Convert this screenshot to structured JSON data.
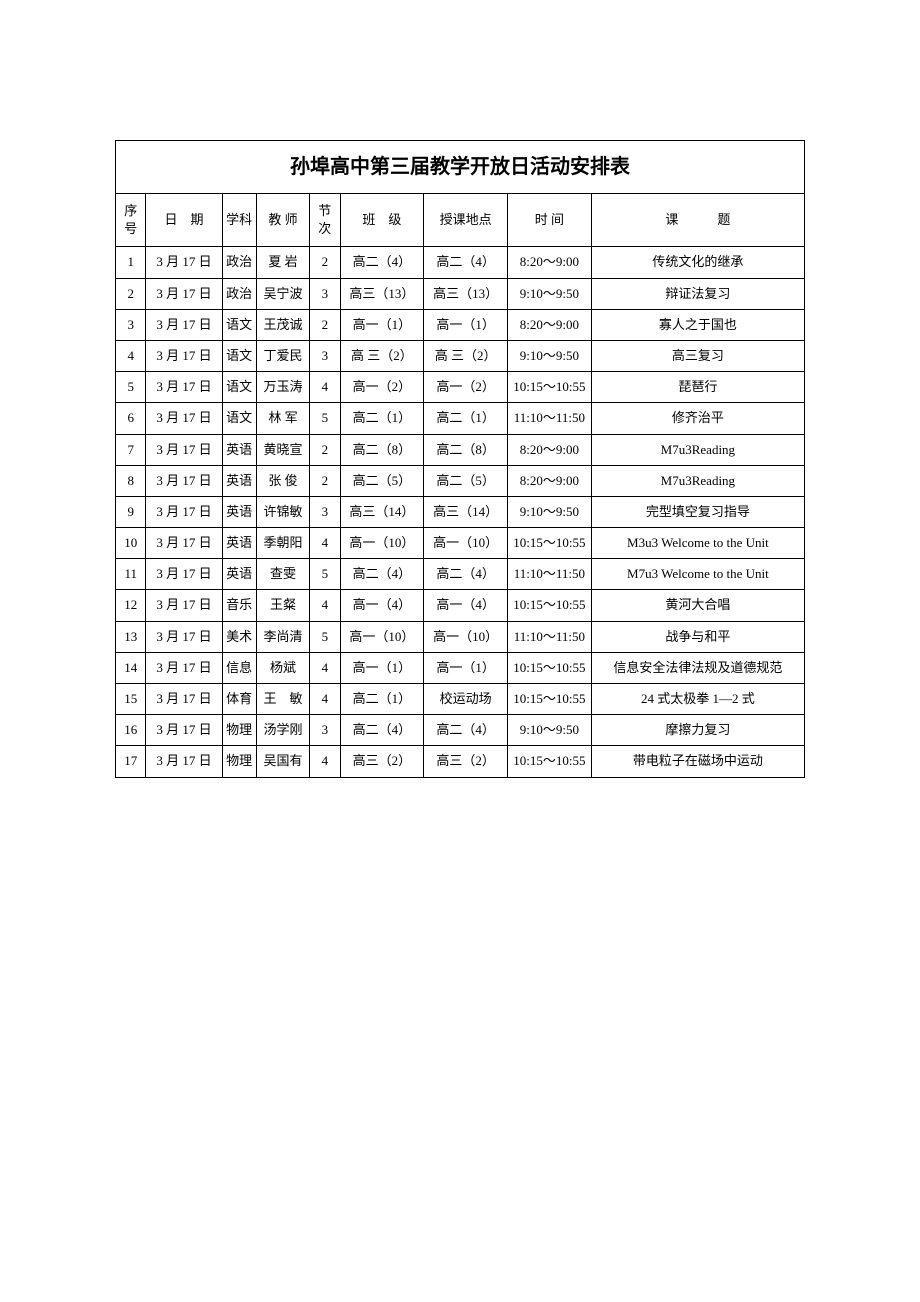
{
  "title": "孙埠高中第三届教学开放日活动安排表",
  "headers": {
    "seq": "序号",
    "date": "日 期",
    "subject": "学科",
    "teacher": "教 师",
    "period": "节次",
    "class": "班 级",
    "location": "授课地点",
    "time": "时 间",
    "topic": "课   题"
  },
  "rows": [
    {
      "seq": "1",
      "date": "3 月 17 日",
      "subject": "政治",
      "teacher": "夏 岩",
      "period": "2",
      "class": "高二（4）",
      "location": "高二（4）",
      "time": "8:20～9:00",
      "topic": "传统文化的继承"
    },
    {
      "seq": "2",
      "date": "3 月 17 日",
      "subject": "政治",
      "teacher": "吴宁波",
      "period": "3",
      "class": "高三（13）",
      "location": "高三（13）",
      "time": "9:10～9:50",
      "topic": "辩证法复习"
    },
    {
      "seq": "3",
      "date": "3 月 17 日",
      "subject": "语文",
      "teacher": "王茂诚",
      "period": "2",
      "class": "高一（1）",
      "location": "高一（1）",
      "time": "8:20～9:00",
      "topic": "寡人之于国也"
    },
    {
      "seq": "4",
      "date": "3 月 17 日",
      "subject": "语文",
      "teacher": "丁爱民",
      "period": "3",
      "class": "高 三（2）",
      "location": "高 三（2）",
      "time": "9:10～9:50",
      "topic": "高三复习"
    },
    {
      "seq": "5",
      "date": "3 月 17 日",
      "subject": "语文",
      "teacher": "万玉涛",
      "period": "4",
      "class": "高一（2）",
      "location": "高一（2）",
      "time": "10:15～10:55",
      "topic": "琵琶行"
    },
    {
      "seq": "6",
      "date": "3 月 17 日",
      "subject": "语文",
      "teacher": "林 军",
      "period": "5",
      "class": "高二（1）",
      "location": "高二（1）",
      "time": "11:10～11:50",
      "topic": "修齐治平"
    },
    {
      "seq": "7",
      "date": "3 月 17 日",
      "subject": "英语",
      "teacher": "黄晓宣",
      "period": "2",
      "class": "高二（8）",
      "location": "高二（8）",
      "time": "8:20～9:00",
      "topic": "M7u3Reading"
    },
    {
      "seq": "8",
      "date": "3 月 17 日",
      "subject": "英语",
      "teacher": "张 俊",
      "period": "2",
      "class": "高二（5）",
      "location": "高二（5）",
      "time": "8:20～9:00",
      "topic": "M7u3Reading"
    },
    {
      "seq": "9",
      "date": "3 月 17 日",
      "subject": "英语",
      "teacher": "许锦敏",
      "period": "3",
      "class": "高三（14）",
      "location": "高三（14）",
      "time": "9:10～9:50",
      "topic": "完型填空复习指导"
    },
    {
      "seq": "10",
      "date": "3 月 17 日",
      "subject": "英语",
      "teacher": "季朝阳",
      "period": "4",
      "class": "高一（10）",
      "location": "高一（10）",
      "time": "10:15～10:55",
      "topic": "M3u3 Welcome to the Unit"
    },
    {
      "seq": "11",
      "date": "3 月 17 日",
      "subject": "英语",
      "teacher": "查雯",
      "period": "5",
      "class": "高二（4）",
      "location": "高二（4）",
      "time": "11:10～11:50",
      "topic": "M7u3 Welcome to the Unit"
    },
    {
      "seq": "12",
      "date": "3 月 17 日",
      "subject": "音乐",
      "teacher": "王粲",
      "period": "4",
      "class": "高一（4）",
      "location": "高一（4）",
      "time": "10:15～10:55",
      "topic": "黄河大合唱"
    },
    {
      "seq": "13",
      "date": "3 月 17 日",
      "subject": "美术",
      "teacher": "李尚清",
      "period": "5",
      "class": "高一（10）",
      "location": "高一（10）",
      "time": "11:10～11:50",
      "topic": "战争与和平"
    },
    {
      "seq": "14",
      "date": "3 月 17 日",
      "subject": "信息",
      "teacher": "杨斌",
      "period": "4",
      "class": "高一（1）",
      "location": "高一（1）",
      "time": "10:15～10:55",
      "topic": "信息安全法律法规及道德规范"
    },
    {
      "seq": "15",
      "date": "3 月 17 日",
      "subject": "体育",
      "teacher": "王 敏",
      "period": "4",
      "class": "高二（1）",
      "location": "校运动场",
      "time": "10:15～10:55",
      "topic": "24 式太极拳 1—2 式"
    },
    {
      "seq": "16",
      "date": "3 月 17 日",
      "subject": "物理",
      "teacher": "汤学刚",
      "period": "3",
      "class": "高二（4）",
      "location": "高二（4）",
      "time": "9:10～9:50",
      "topic": "摩擦力复习"
    },
    {
      "seq": "17",
      "date": "3 月 17 日",
      "subject": "物理",
      "teacher": "吴国有",
      "period": "4",
      "class": "高三（2）",
      "location": "高三（2）",
      "time": "10:15～10:55",
      "topic": "带电粒子在磁场中运动"
    }
  ],
  "styling": {
    "border_color": "#000000",
    "background_color": "#ffffff",
    "title_fontsize": 20,
    "header_fontsize": 13,
    "cell_fontsize": 13,
    "font_family": "SimSun",
    "title_font_family": "SimHei"
  }
}
